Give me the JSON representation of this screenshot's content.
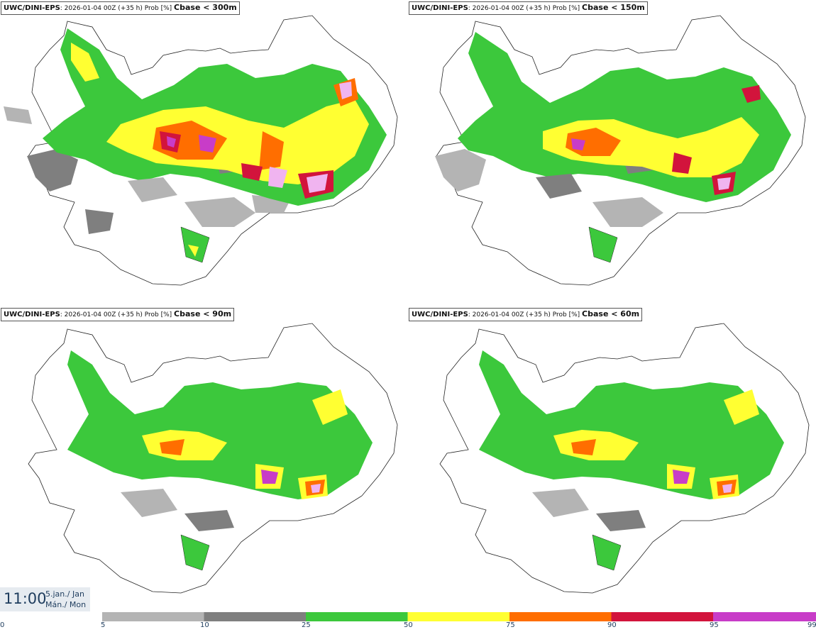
{
  "panels": [
    {
      "model": "UWC/DINI-EPS",
      "run": ": 2026-01-04 00Z (+35 h) Prob [%]",
      "variable": "Cbase < 300m"
    },
    {
      "model": "UWC/DINI-EPS",
      "run": ": 2026-01-04 00Z (+35 h) Prob [%]",
      "variable": "Cbase < 150m"
    },
    {
      "model": "UWC/DINI-EPS",
      "run": ": 2026-01-04 00Z (+35 h) Prob [%]",
      "variable": "Cbase < 90m"
    },
    {
      "model": "UWC/DINI-EPS",
      "run": ": 2026-01-04 00Z (+35 h) Prob [%]",
      "variable": "Cbase < 60m"
    }
  ],
  "timestamp": {
    "time": "11:00",
    "date_is": "5.jan./ Jan",
    "day_is": "Mán./ Mon"
  },
  "legend": {
    "ticks": [
      "0",
      "5",
      "10",
      "25",
      "50",
      "75",
      "90",
      "95",
      "99"
    ],
    "colors": [
      "#ffffff",
      "#b4b4b4",
      "#7f7f7f",
      "#3cc83c",
      "#ffff32",
      "#ff6e00",
      "#d2143c",
      "#c83cc8",
      "#f0b4f0"
    ]
  }
}
